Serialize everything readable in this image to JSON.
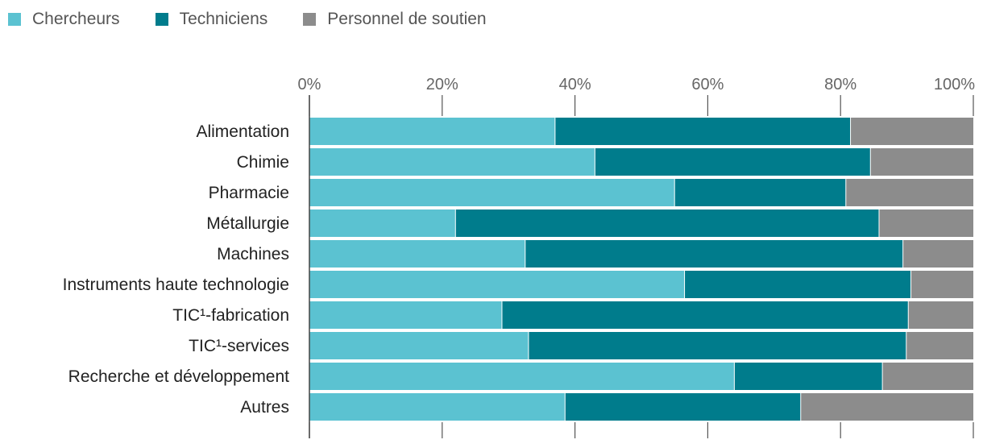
{
  "chart_data": {
    "type": "bar",
    "orientation": "horizontal",
    "stacked": "percent",
    "title": "",
    "xlabel": "",
    "ylabel": "",
    "xlim": [
      0,
      100
    ],
    "x_ticks": [
      "0%",
      "20%",
      "40%",
      "60%",
      "80%",
      "100%"
    ],
    "legend_position": "top-left",
    "categories": [
      "Alimentation",
      "Chimie",
      "Pharmacie",
      "Métallurgie",
      "Machines",
      "Instruments haute technologie",
      "TIC¹-fabrication",
      "TIC¹-services",
      "Recherche et développement",
      "Autres"
    ],
    "series": [
      {
        "name": "Chercheurs",
        "color": "#5BC2D1",
        "values": [
          37,
          43,
          55,
          22,
          32.5,
          56.5,
          29,
          33,
          64,
          38.5
        ]
      },
      {
        "name": "Techniciens",
        "color": "#007C8C",
        "values": [
          44.5,
          41.5,
          25.8,
          63.8,
          56.9,
          34.1,
          61.2,
          56.9,
          22.3,
          35.5
        ]
      },
      {
        "name": "Personnel de soutien",
        "color": "#8C8C8C",
        "values": [
          18.5,
          15.5,
          19.2,
          14.2,
          10.6,
          9.4,
          9.8,
          10.1,
          13.7,
          26
        ]
      }
    ]
  }
}
